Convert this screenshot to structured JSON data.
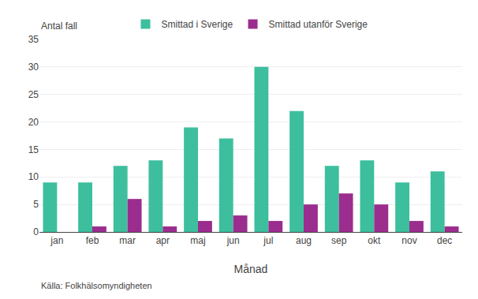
{
  "chart_data": {
    "type": "bar",
    "categories": [
      "jan",
      "feb",
      "mar",
      "apr",
      "maj",
      "jun",
      "jul",
      "aug",
      "sep",
      "okt",
      "nov",
      "dec"
    ],
    "series": [
      {
        "name": "Smittad i Sverige",
        "color": "#3dbf9e",
        "values": [
          9,
          9,
          12,
          13,
          19,
          17,
          30,
          22,
          12,
          13,
          9,
          11
        ]
      },
      {
        "name": "Smittad utanför Sverige",
        "color": "#9b2d8e",
        "values": [
          0,
          1,
          6,
          1,
          2,
          3,
          2,
          5,
          7,
          5,
          2,
          1
        ]
      }
    ],
    "xlabel": "Månad",
    "ylabel": "Antal fall",
    "caption": "Källa: Folkhälsomyndigheten",
    "ylim": [
      0,
      35
    ],
    "yticks": [
      0,
      5,
      10,
      15,
      20,
      25,
      30,
      35
    ],
    "grid": true,
    "legend": "top"
  }
}
